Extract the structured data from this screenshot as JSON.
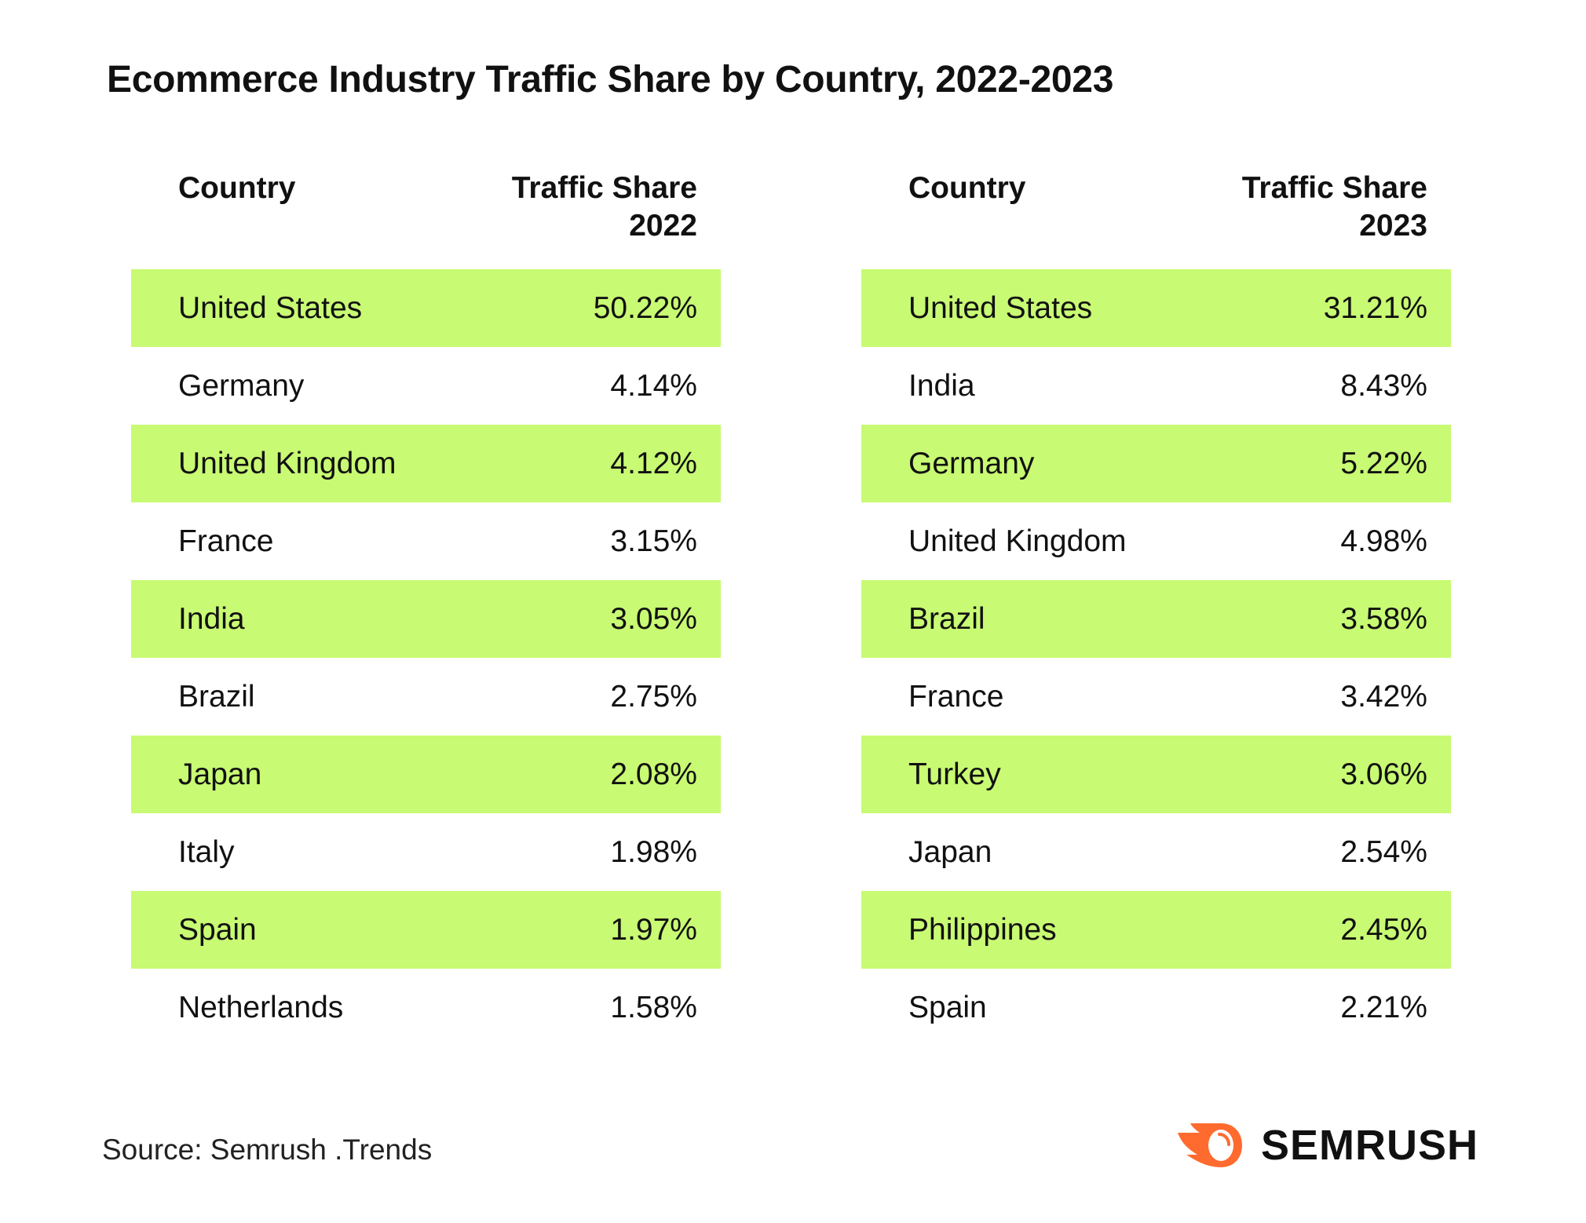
{
  "title": "Ecommerce Industry Traffic Share by Country, 2022-2023",
  "tables": [
    {
      "col_country": "Country",
      "col_share_line1": "Traffic Share",
      "col_share_line2": "2022",
      "rows": [
        [
          "United States",
          "50.22%"
        ],
        [
          "Germany",
          "4.14%"
        ],
        [
          "United Kingdom",
          "4.12%"
        ],
        [
          "France",
          "3.15%"
        ],
        [
          "India",
          "3.05%"
        ],
        [
          "Brazil",
          "2.75%"
        ],
        [
          "Japan",
          "2.08%"
        ],
        [
          "Italy",
          "1.98%"
        ],
        [
          "Spain",
          "1.97%"
        ],
        [
          "Netherlands",
          "1.58%"
        ]
      ]
    },
    {
      "col_country": "Country",
      "col_share_line1": "Traffic Share",
      "col_share_line2": "2023",
      "rows": [
        [
          "United States",
          "31.21%"
        ],
        [
          "India",
          "8.43%"
        ],
        [
          "Germany",
          "5.22%"
        ],
        [
          "United Kingdom",
          "4.98%"
        ],
        [
          "Brazil",
          "3.58%"
        ],
        [
          "France",
          "3.42%"
        ],
        [
          "Turkey",
          "3.06%"
        ],
        [
          "Japan",
          "2.54%"
        ],
        [
          "Philippines",
          "2.45%"
        ],
        [
          "Spain",
          "2.21%"
        ]
      ]
    }
  ],
  "source": "Source: Semrush .Trends",
  "logo_text": "SEMRUSH",
  "colors": {
    "row_highlight": "#c8fa73",
    "logo_orange": "#ff6b2f"
  }
}
